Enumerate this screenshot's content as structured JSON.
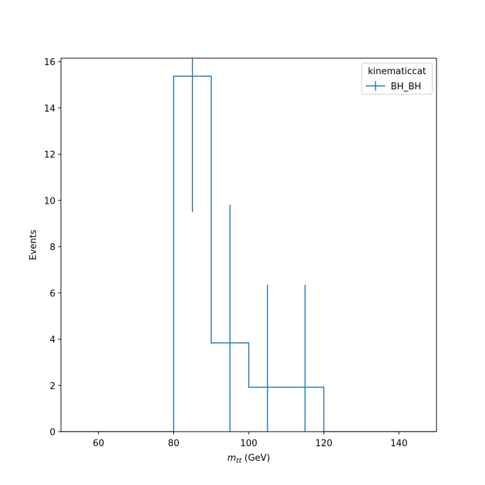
{
  "chart_data": {
    "type": "histogram",
    "ylabel": "Events",
    "xlabel_prefix": "m",
    "xlabel_subscript": "tt",
    "xlabel_suffix": " (GeV)",
    "xlim": [
      50,
      150
    ],
    "ylim": [
      0,
      16.15
    ],
    "xticks": [
      60,
      80,
      100,
      120,
      140
    ],
    "yticks": [
      0,
      2,
      4,
      6,
      8,
      10,
      12,
      14,
      16
    ],
    "legend": {
      "title": "kinematiccat",
      "placement": "top-right"
    },
    "series": [
      {
        "name": "BH_BH",
        "color": "#1f77b4",
        "bin_edges": [
          50,
          60,
          70,
          80,
          90,
          100,
          110,
          120,
          130,
          140,
          150
        ],
        "values": [
          0,
          0,
          0,
          15.37,
          3.84,
          1.92,
          1.92,
          0,
          0,
          0
        ],
        "errors": [
          0,
          0,
          0,
          5.88,
          5.97,
          4.43,
          4.43,
          0,
          0,
          0
        ]
      }
    ]
  }
}
